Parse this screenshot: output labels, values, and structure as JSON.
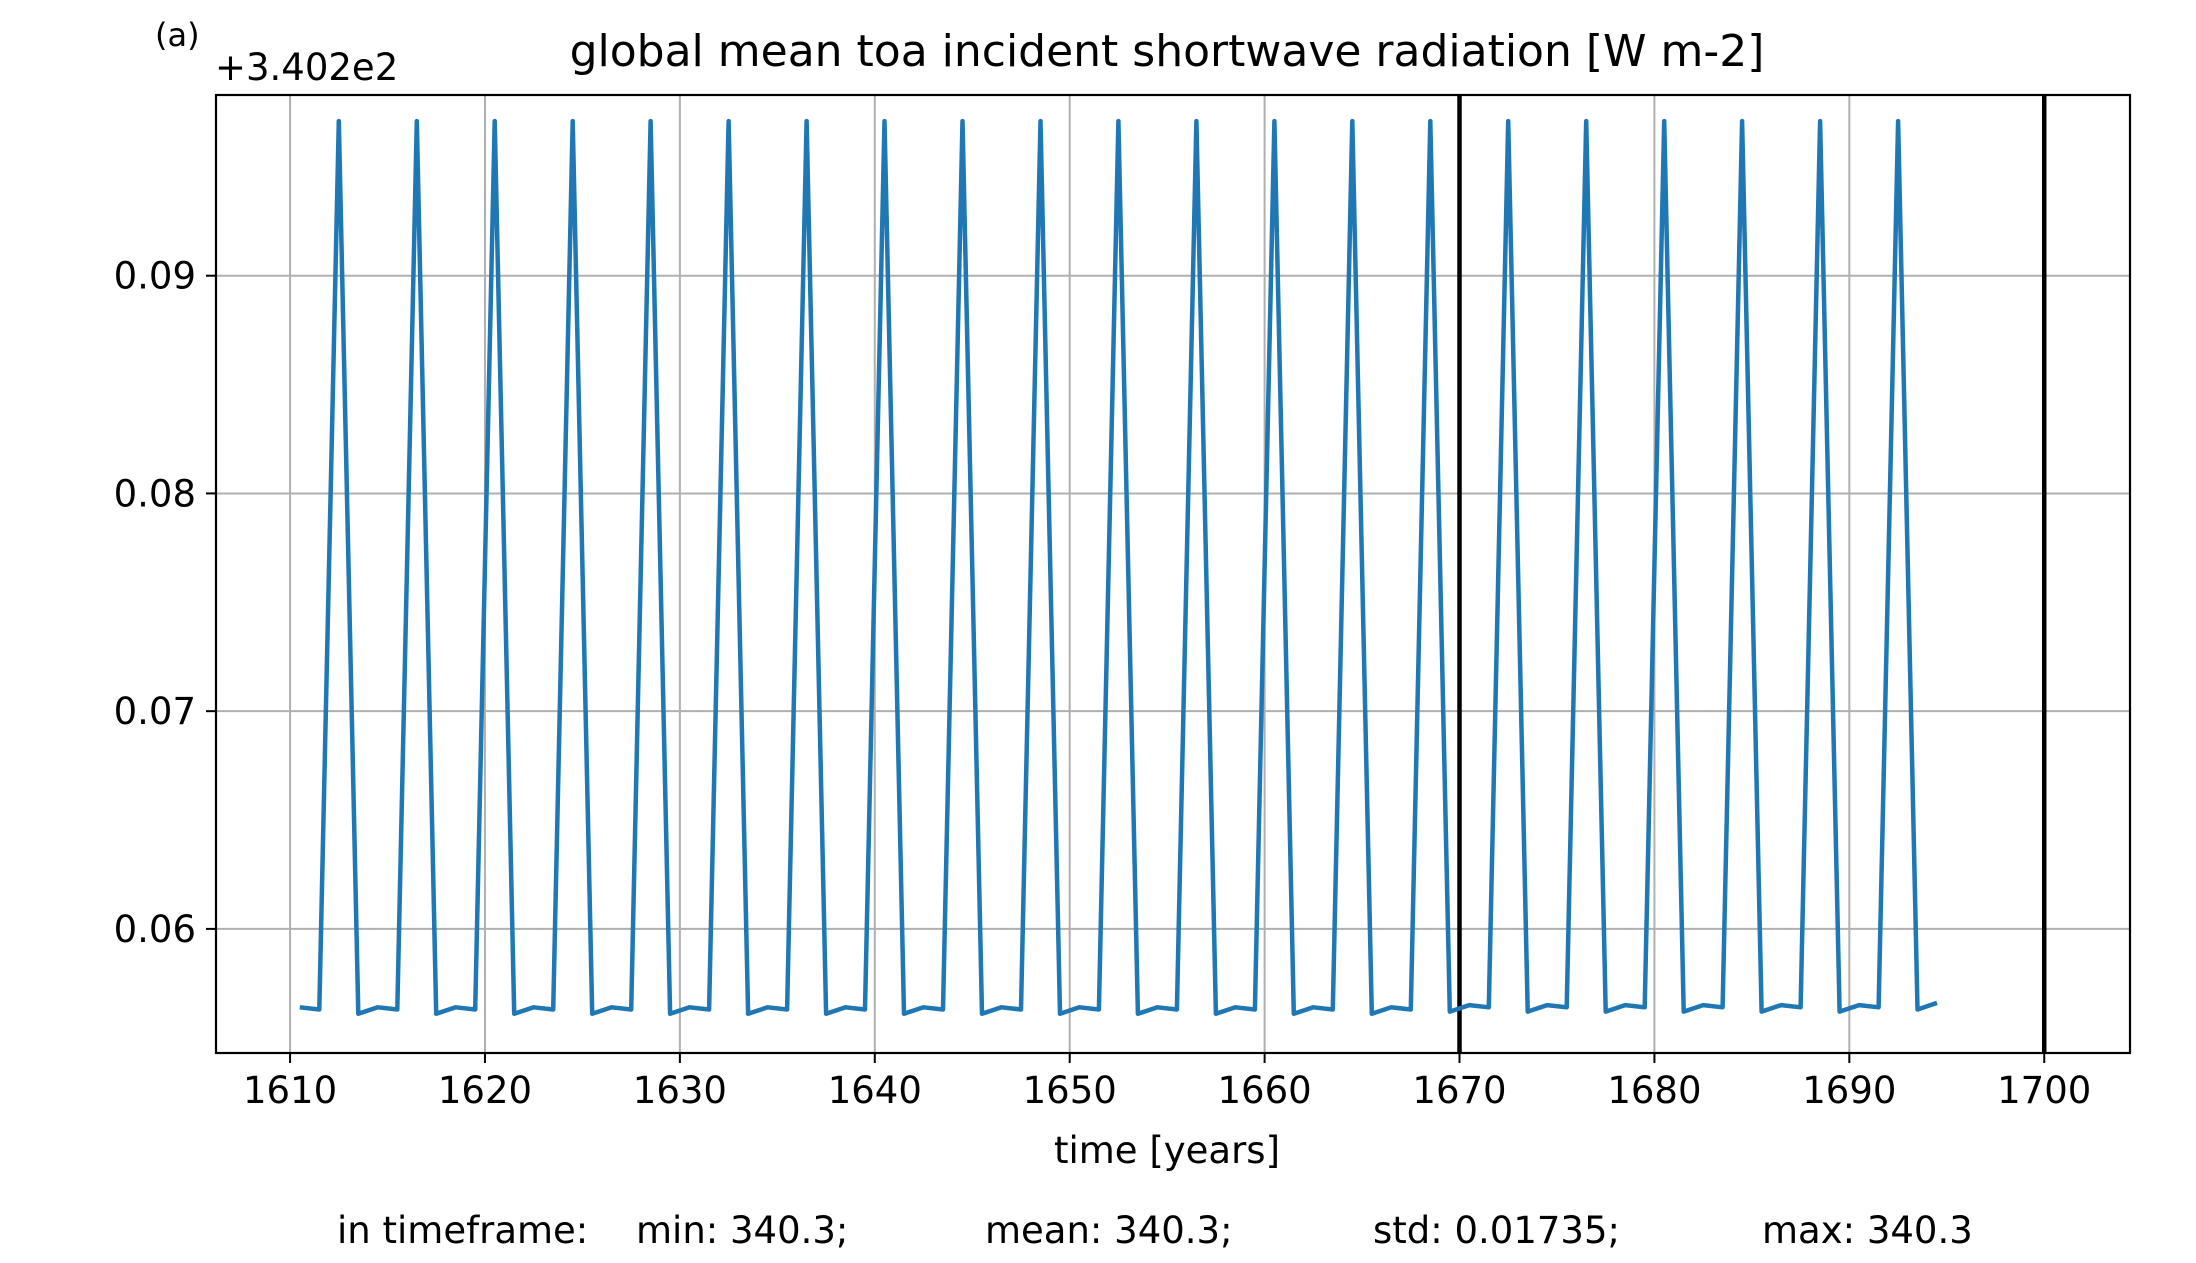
{
  "chart_data": {
    "type": "line",
    "panel_label": "(a)",
    "title": "global mean toa incident shortwave radiation [W m-2]",
    "xlabel": "time [years]",
    "ylabel": "",
    "y_offset_label": "+3.402e2",
    "xlim": [
      1606.2,
      1704.4
    ],
    "ylim": [
      0.0543,
      0.0983
    ],
    "x_ticks": [
      1610,
      1620,
      1630,
      1640,
      1650,
      1660,
      1670,
      1680,
      1690,
      1700
    ],
    "x_tick_labels": [
      "1610",
      "1620",
      "1630",
      "1640",
      "1650",
      "1660",
      "1670",
      "1680",
      "1690",
      "1700"
    ],
    "y_ticks": [
      0.06,
      0.07,
      0.08,
      0.09
    ],
    "y_tick_labels": [
      "0.06",
      "0.07",
      "0.08",
      "0.09"
    ],
    "grid": true,
    "line_color": "#1f77b4",
    "vertical_markers": [
      1670,
      1700
    ],
    "series": [
      {
        "x": [
          1610.5,
          1611.5,
          1612.5,
          1613.5,
          1614.5,
          1615.5,
          1616.5,
          1617.5,
          1618.5,
          1619.5,
          1620.5,
          1621.5,
          1622.5,
          1623.5,
          1624.5,
          1625.5,
          1626.5,
          1627.5,
          1628.5,
          1629.5,
          1630.5,
          1631.5,
          1632.5,
          1633.5,
          1634.5,
          1635.5,
          1636.5,
          1637.5,
          1638.5,
          1639.5,
          1640.5,
          1641.5,
          1642.5,
          1643.5,
          1644.5,
          1645.5,
          1646.5,
          1647.5,
          1648.5,
          1649.5,
          1650.5,
          1651.5,
          1652.5,
          1653.5,
          1654.5,
          1655.5,
          1656.5,
          1657.5,
          1658.5,
          1659.5,
          1660.5,
          1661.5,
          1662.5,
          1663.5,
          1664.5,
          1665.5,
          1666.5,
          1667.5,
          1668.5,
          1669.5,
          1670.5,
          1671.5,
          1672.5,
          1673.5,
          1674.5,
          1675.5,
          1676.5,
          1677.5,
          1678.5,
          1679.5,
          1680.5,
          1681.5,
          1682.5,
          1683.5,
          1684.5,
          1685.5,
          1686.5,
          1687.5,
          1688.5,
          1689.5,
          1690.5,
          1691.5,
          1692.5,
          1693.5,
          1694.5
        ],
        "values": [
          0.0564,
          0.0563,
          0.0971,
          0.0561,
          0.0564,
          0.0563,
          0.0971,
          0.0561,
          0.0564,
          0.0563,
          0.0971,
          0.0561,
          0.0564,
          0.0563,
          0.0971,
          0.0561,
          0.0564,
          0.0563,
          0.0971,
          0.0561,
          0.0564,
          0.0563,
          0.0971,
          0.0561,
          0.0564,
          0.0563,
          0.0971,
          0.0561,
          0.0564,
          0.0563,
          0.0971,
          0.0561,
          0.0564,
          0.0563,
          0.0971,
          0.0561,
          0.0564,
          0.0563,
          0.0971,
          0.0561,
          0.0564,
          0.0563,
          0.0971,
          0.0561,
          0.0564,
          0.0563,
          0.0971,
          0.0561,
          0.0564,
          0.0563,
          0.0971,
          0.0561,
          0.0564,
          0.0563,
          0.0971,
          0.0561,
          0.0564,
          0.0563,
          0.0971,
          0.0562,
          0.0565,
          0.0564,
          0.0971,
          0.0562,
          0.0565,
          0.0564,
          0.0971,
          0.0562,
          0.0565,
          0.0564,
          0.0971,
          0.0562,
          0.0565,
          0.0564,
          0.0971,
          0.0562,
          0.0565,
          0.0564,
          0.0971,
          0.0562,
          0.0565,
          0.0564,
          0.0971,
          0.0563,
          0.0566
        ]
      }
    ]
  },
  "stats": {
    "prefix": "in timeframe:",
    "min": "min: 340.3;",
    "mean": "mean: 340.3;",
    "std": "std: 0.01735;",
    "max": "max: 340.3"
  }
}
